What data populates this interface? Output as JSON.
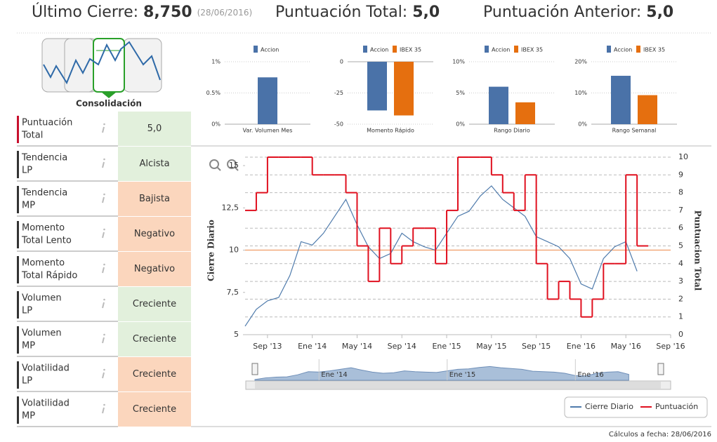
{
  "header": {
    "last_close_label": "Último Cierre:",
    "last_close": "8,750",
    "last_close_date": "(28/06/2016)",
    "score_label": "Puntuación Total:",
    "score": "5,0",
    "prev_score_label": "Puntuación Anterior:",
    "prev_score": "5,0"
  },
  "thumbnail": {
    "label": "Consolidación"
  },
  "indicators": {
    "rows": [
      {
        "label": [
          "Puntuación",
          "Total"
        ],
        "value": "5,0",
        "label_color": "#c8102e",
        "color": "#e2f0dc",
        "text_color": "#3c8a3c"
      },
      {
        "label": [
          "Tendencia",
          "LP"
        ],
        "value": "Alcista",
        "label_color": "#444444",
        "color": "#e2f0dc",
        "text_color": "#3c8a3c"
      },
      {
        "label": [
          "Tendencia",
          "MP"
        ],
        "value": "Bajista",
        "label_color": "#444444",
        "color": "#fbd6bd",
        "text_color": "#c0502b"
      },
      {
        "label": [
          "Momento",
          "Total Lento"
        ],
        "value": "Negativo",
        "label_color": "#444444",
        "color": "#fbd6bd",
        "text_color": "#c0502b"
      },
      {
        "label": [
          "Momento",
          "Total Rápido"
        ],
        "value": "Negativo",
        "label_color": "#444444",
        "color": "#fbd6bd",
        "text_color": "#c0502b"
      },
      {
        "label": [
          "Volumen",
          "LP"
        ],
        "value": "Creciente",
        "label_color": "#444444",
        "color": "#e2f0dc",
        "text_color": "#3c8a3c"
      },
      {
        "label": [
          "Volumen",
          "MP"
        ],
        "value": "Creciente",
        "label_color": "#444444",
        "color": "#e2f0dc",
        "text_color": "#3c8a3c"
      },
      {
        "label": [
          "Volatilidad",
          "LP"
        ],
        "value": "Creciente",
        "label_color": "#444444",
        "color": "#fbd6bd",
        "text_color": "#c0502b"
      },
      {
        "label": [
          "Volatilidad",
          "MP"
        ],
        "value": "Creciente",
        "label_color": "#444444",
        "color": "#fbd6bd",
        "text_color": "#c0502b"
      }
    ]
  },
  "chart_data": [
    {
      "type": "bar",
      "categories": [
        "Var. Volumen Mes"
      ],
      "series": [
        {
          "name": "Accion",
          "color": "#4a72a8",
          "values": [
            0.75
          ]
        }
      ],
      "ylim": [
        0,
        1
      ],
      "yticks": [
        {
          "value": 0,
          "label": "0%"
        },
        {
          "value": 0.5,
          "label": "0.5%"
        },
        {
          "value": 1,
          "label": "1%"
        }
      ]
    },
    {
      "type": "bar",
      "categories": [
        "Momento Rápido"
      ],
      "series": [
        {
          "name": "Accion",
          "color": "#4a72a8",
          "values": [
            -39
          ]
        },
        {
          "name": "IBEX 35",
          "color": "#e56f0f",
          "values": [
            -43
          ]
        }
      ],
      "ylim": [
        -50,
        0
      ],
      "yticks": [
        -50,
        -25,
        0
      ]
    },
    {
      "type": "bar",
      "categories": [
        "Rango Diario"
      ],
      "series": [
        {
          "name": "Accion",
          "color": "#4a72a8",
          "values": [
            6
          ]
        },
        {
          "name": "IBEX 35",
          "color": "#e56f0f",
          "values": [
            3.5
          ]
        }
      ],
      "ylim": [
        0,
        10
      ],
      "yticks": [
        {
          "value": 0,
          "label": "0%"
        },
        {
          "value": 5,
          "label": "5%"
        },
        {
          "value": 10,
          "label": "10%"
        }
      ]
    },
    {
      "type": "bar",
      "categories": [
        "Rango Semanal"
      ],
      "series": [
        {
          "name": "Accion",
          "color": "#4a72a8",
          "values": [
            15.5
          ]
        },
        {
          "name": "IBEX 35",
          "color": "#e56f0f",
          "values": [
            9.3
          ]
        }
      ],
      "ylim": [
        0,
        20
      ],
      "yticks": [
        {
          "value": 0,
          "label": "0%"
        },
        {
          "value": 10,
          "label": "10%"
        },
        {
          "value": 20,
          "label": "20%"
        }
      ]
    },
    {
      "type": "line",
      "x": [
        "2013-07",
        "2013-08",
        "2013-09",
        "2013-10",
        "2013-11",
        "2013-12",
        "2014-01",
        "2014-02",
        "2014-03",
        "2014-04",
        "2014-05",
        "2014-06",
        "2014-07",
        "2014-08",
        "2014-09",
        "2014-10",
        "2014-11",
        "2014-12",
        "2015-01",
        "2015-02",
        "2015-03",
        "2015-04",
        "2015-05",
        "2015-06",
        "2015-07",
        "2015-08",
        "2015-09",
        "2015-10",
        "2015-11",
        "2015-12",
        "2016-01",
        "2016-02",
        "2016-03",
        "2016-04",
        "2016-05",
        "2016-06"
      ],
      "series": [
        {
          "name": "Cierre Diario",
          "color": "#4f7bac",
          "values": [
            5.5,
            6.5,
            7.0,
            7.2,
            8.5,
            10.5,
            10.3,
            11.0,
            12.0,
            13.0,
            11.5,
            10.2,
            9.5,
            9.8,
            11.0,
            10.5,
            10.2,
            10.0,
            11.0,
            12.0,
            12.3,
            13.2,
            13.8,
            13.0,
            12.5,
            12.0,
            10.8,
            10.5,
            10.2,
            9.5,
            8.0,
            7.7,
            9.5,
            10.2,
            10.5,
            8.75
          ]
        },
        {
          "name": "Puntuación",
          "color": "#e0101f",
          "axis": "y2",
          "step": true,
          "values": [
            7,
            8,
            10,
            10,
            10,
            10,
            9,
            9,
            9,
            8,
            5,
            3,
            6,
            4,
            5,
            6,
            6,
            4,
            7,
            10,
            10,
            10,
            9,
            8,
            7,
            9,
            4,
            2,
            3,
            2,
            1,
            2,
            4,
            4,
            9,
            5
          ]
        }
      ],
      "xlim": [
        "2013-07",
        "2016-09"
      ],
      "xticks": [
        {
          "value": "2013-09",
          "label": "Sep '13"
        },
        {
          "value": "2014-01",
          "label": "Ene '14"
        },
        {
          "value": "2014-05",
          "label": "May '14"
        },
        {
          "value": "2014-09",
          "label": "Sep '14"
        },
        {
          "value": "2015-01",
          "label": "Ene '15"
        },
        {
          "value": "2015-05",
          "label": "May '15"
        },
        {
          "value": "2015-09",
          "label": "Sep '15"
        },
        {
          "value": "2016-01",
          "label": "Ene '16"
        },
        {
          "value": "2016-05",
          "label": "May '16"
        },
        {
          "value": "2016-09",
          "label": "Sep '16"
        }
      ],
      "ylim": [
        5,
        15.5
      ],
      "yticks": [
        5,
        {
          "value": 7.5,
          "label": "7,5"
        },
        10,
        {
          "value": 12.5,
          "label": "12,5"
        },
        15
      ],
      "y2lim": [
        0,
        10
      ],
      "y2ticks": [
        0,
        1,
        2,
        3,
        4,
        5,
        6,
        7,
        8,
        9,
        10
      ],
      "ylabel": "Cierre Diario",
      "y2label": "Puntuacion Total",
      "grid": "y2",
      "plot_line": {
        "value": 10,
        "color": "#f2a97a"
      },
      "legend": "bottom-right",
      "navigator": {
        "labels": [
          {
            "value": "2014-01",
            "label": "Ene '14"
          },
          {
            "value": "2015-01",
            "label": "Ene '15"
          },
          {
            "value": "2016-01",
            "label": "Ene '16"
          }
        ]
      }
    }
  ],
  "footer": {
    "text": "Cálculos a fecha: 28/06/2016"
  }
}
